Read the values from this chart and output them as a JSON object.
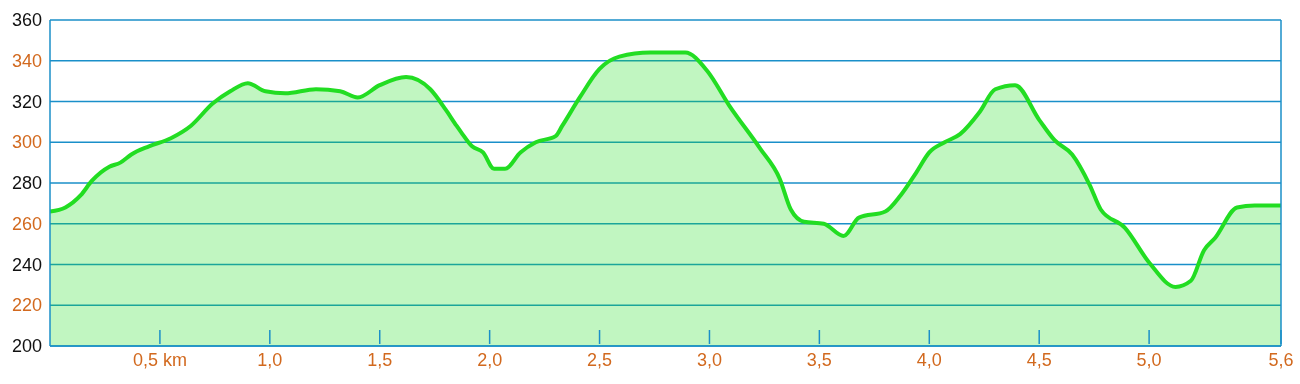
{
  "chart_data": {
    "type": "area",
    "x": [
      0,
      0.07,
      0.14,
      0.19,
      0.27,
      0.32,
      0.37,
      0.45,
      0.55,
      0.64,
      0.74,
      0.82,
      0.9,
      0.98,
      1.07,
      1.21,
      1.32,
      1.4,
      1.5,
      1.62,
      1.73,
      1.8,
      1.85,
      1.87,
      1.92,
      1.97,
      2.02,
      2.07,
      2.14,
      2.21,
      2.3,
      2.33,
      2.41,
      2.5,
      2.59,
      2.73,
      2.89,
      2.99,
      3.09,
      3.23,
      3.32,
      3.37,
      3.43,
      3.52,
      3.61,
      3.68,
      3.8,
      3.87,
      3.94,
      4.0,
      4.07,
      4.14,
      4.23,
      4.3,
      4.39,
      4.5,
      4.57,
      4.65,
      4.73,
      4.78,
      4.89,
      5.0,
      5.12,
      5.19,
      5.25,
      5.3,
      5.4,
      5.48,
      5.6
    ],
    "series": [
      {
        "color": "#22dd22",
        "values": [
          266,
          268,
          274,
          281,
          288,
          290,
          294,
          298,
          302,
          308,
          319,
          325,
          329,
          325,
          324,
          326,
          325,
          322,
          328,
          332,
          326,
          316,
          308,
          305,
          298,
          295,
          287,
          287,
          295,
          300,
          303,
          308,
          322,
          336,
          342,
          344,
          344,
          335,
          318,
          297,
          282,
          267,
          261,
          260,
          254,
          263,
          266,
          274,
          285,
          295,
          300,
          304,
          315,
          326,
          328,
          311,
          301,
          294,
          279,
          267,
          258,
          241,
          229,
          232,
          247,
          253,
          268,
          269,
          269
        ]
      }
    ],
    "xlim": [
      0,
      5.6
    ],
    "ylim": [
      200,
      360
    ],
    "xticks": [
      {
        "value": 0.5,
        "label": "0,5 km"
      },
      {
        "value": 1,
        "label": "1,0"
      },
      {
        "value": 1.5,
        "label": "1,5"
      },
      {
        "value": 2,
        "label": "2,0"
      },
      {
        "value": 2.5,
        "label": "2,5"
      },
      {
        "value": 3,
        "label": "3,0"
      },
      {
        "value": 3.5,
        "label": "3,5"
      },
      {
        "value": 4,
        "label": "4,0"
      },
      {
        "value": 4.5,
        "label": "4,5"
      },
      {
        "value": 5,
        "label": "5,0"
      },
      {
        "value": 5.6,
        "label": "5,6"
      }
    ],
    "yticks": [
      200,
      220,
      240,
      260,
      280,
      300,
      320,
      340,
      360
    ],
    "grid": "y",
    "legend": false,
    "marker": "none",
    "line_style": "solid"
  }
}
